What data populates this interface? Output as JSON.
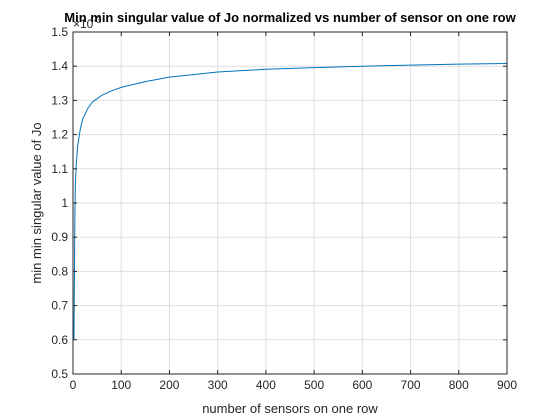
{
  "chart_data": {
    "type": "line",
    "title": "Min min singular value of Jo normalized vs number of sensor on one row",
    "xlabel": "number of sensors on one row",
    "ylabel": "min min singular value of Jo",
    "exponent_label": "×10",
    "exponent_power": "-3",
    "xlim": [
      0,
      900
    ],
    "ylim": [
      0.5,
      1.5
    ],
    "xticks": [
      0,
      100,
      200,
      300,
      400,
      500,
      600,
      700,
      800,
      900
    ],
    "yticks": [
      0.5,
      0.6,
      0.7,
      0.8,
      0.9,
      1,
      1.1,
      1.2,
      1.3,
      1.4,
      1.5
    ],
    "ytick_labels": [
      "0.5",
      "0.6",
      "0.7",
      "0.8",
      "0.9",
      "1",
      "1.1",
      "1.2",
      "1.3",
      "1.4",
      "1.5"
    ],
    "grid": true,
    "line_color": "#0072bd",
    "series": [
      {
        "x": [
          2,
          3,
          4,
          5,
          7,
          10,
          15,
          20,
          30,
          40,
          50,
          60,
          80,
          100,
          150,
          200,
          300,
          400,
          500,
          600,
          700,
          800,
          900
        ],
        "y": [
          0.6,
          0.8,
          0.98,
          1.06,
          1.12,
          1.17,
          1.215,
          1.245,
          1.275,
          1.295,
          1.305,
          1.315,
          1.328,
          1.338,
          1.355,
          1.368,
          1.383,
          1.391,
          1.396,
          1.4,
          1.403,
          1.406,
          1.408
        ]
      }
    ]
  }
}
